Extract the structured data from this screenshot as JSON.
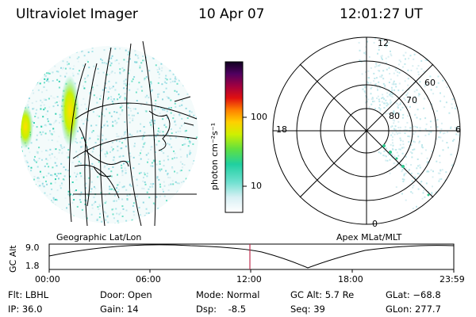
{
  "header": {
    "title": "Ultraviolet Imager",
    "date": "10 Apr 07",
    "time": "12:01:27 UT"
  },
  "colorbar": {
    "label": "photon cm⁻²s⁻¹",
    "ticks": [
      "100",
      "10"
    ],
    "scale": "log"
  },
  "geo_panel": {
    "label": "Geographic Lat/Lon"
  },
  "polar_panel": {
    "label": "Apex MLat/MLT",
    "mlt_labels": {
      "top": "12",
      "left": "18",
      "right": "6",
      "bottom": "0"
    },
    "lat_labels": [
      "60",
      "70",
      "80"
    ]
  },
  "timeline": {
    "ylabel": "GC Alt",
    "yticks": [
      "9.0",
      "1.8"
    ],
    "xticks": [
      "00:00",
      "06:00",
      "12:00",
      "18:00",
      "23:59"
    ],
    "marker_color": "#c03050"
  },
  "info": {
    "flt": "Flt: LBHL",
    "ip": "IP: 36.0",
    "door": "Door: Open",
    "gain": "Gain: 14",
    "mode": "Mode: Normal",
    "dsp": "Dsp:    -8.5",
    "gcalt": "GC Alt: 5.7 Re",
    "seq": "Seq: 39",
    "glat": "GLat: −68.8",
    "glon": "GLon: 277.7"
  }
}
